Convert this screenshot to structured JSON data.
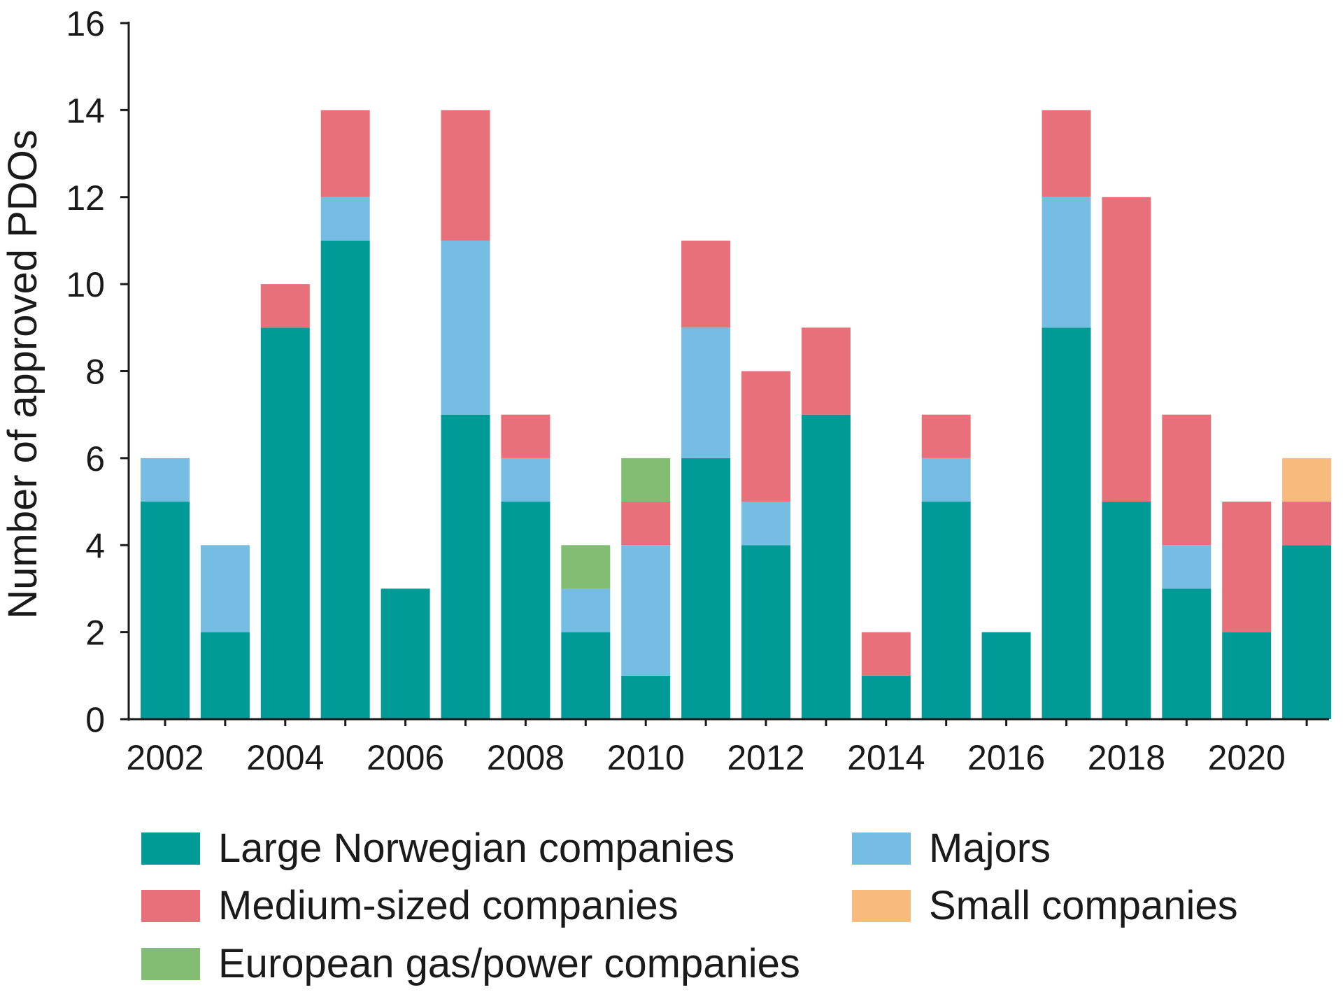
{
  "chart_data": {
    "type": "bar",
    "stacked": true,
    "title": "",
    "xlabel": "",
    "ylabel": "Number of approved PDOs",
    "ylim": [
      0,
      16
    ],
    "yticks": [
      0,
      2,
      4,
      6,
      8,
      10,
      12,
      14,
      16
    ],
    "grid": false,
    "categories": [
      2002,
      2003,
      2004,
      2005,
      2006,
      2007,
      2008,
      2009,
      2010,
      2011,
      2012,
      2013,
      2014,
      2015,
      2016,
      2017,
      2018,
      2019,
      2020,
      2021
    ],
    "xtick_labels": [
      "2002",
      "2004",
      "2006",
      "2008",
      "2010",
      "2012",
      "2014",
      "2016",
      "2018",
      "2020"
    ],
    "series": [
      {
        "name": "Large Norwegian companies",
        "color": "#009b96",
        "values": [
          5,
          2,
          9,
          11,
          3,
          7,
          5,
          2,
          1,
          6,
          4,
          7,
          1,
          5,
          2,
          9,
          5,
          3,
          2,
          4
        ]
      },
      {
        "name": "Majors",
        "color": "#76bde4",
        "values": [
          1,
          2,
          0,
          1,
          0,
          4,
          1,
          1,
          3,
          3,
          1,
          0,
          0,
          1,
          0,
          3,
          0,
          1,
          0,
          0
        ]
      },
      {
        "name": "Medium-sized companies",
        "color": "#e7707b",
        "values": [
          0,
          0,
          1,
          2,
          0,
          3,
          1,
          0,
          1,
          2,
          3,
          2,
          1,
          1,
          0,
          2,
          7,
          3,
          3,
          1
        ]
      },
      {
        "name": "European gas/power companies",
        "color": "#82bd73",
        "values": [
          0,
          0,
          0,
          0,
          0,
          0,
          0,
          1,
          1,
          0,
          0,
          0,
          0,
          0,
          0,
          0,
          0,
          0,
          0,
          0
        ]
      },
      {
        "name": "Small companies",
        "color": "#f8ba7d",
        "values": [
          0,
          0,
          0,
          0,
          0,
          0,
          0,
          0,
          0,
          0,
          0,
          0,
          0,
          0,
          0,
          0,
          0,
          0,
          0,
          1
        ]
      }
    ],
    "legend": {
      "placement": "bottom",
      "order": [
        "Large Norwegian companies",
        "Majors",
        "Medium-sized companies",
        "Small companies",
        "European gas/power companies"
      ]
    }
  }
}
